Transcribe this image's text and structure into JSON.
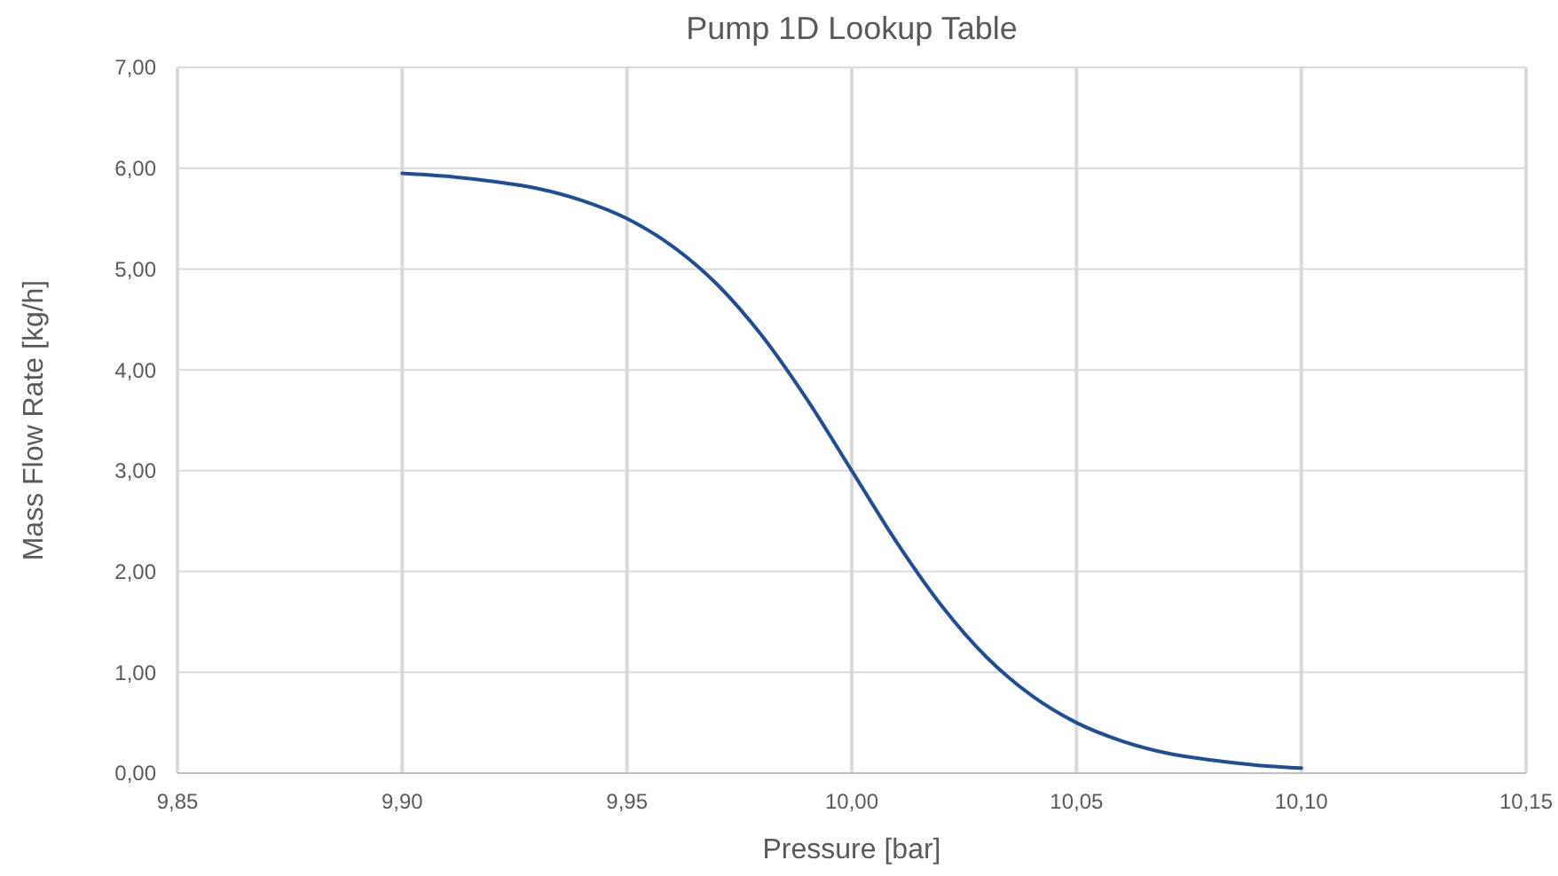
{
  "chart_data": {
    "type": "line",
    "title": "Pump 1D Lookup Table",
    "xlabel": "Pressure [bar]",
    "ylabel": "Mass Flow Rate [kg/h]",
    "x": [
      9.9,
      9.91,
      9.92,
      9.93,
      9.94,
      9.95,
      9.96,
      9.97,
      9.98,
      9.99,
      10,
      10.01,
      10.02,
      10.03,
      10.04,
      10.05,
      10.06,
      10.07,
      10.08,
      10.09,
      10.1
    ],
    "series": [
      {
        "color": "#1f4e96",
        "values": [
          5.95,
          5.92,
          5.87,
          5.8,
          5.68,
          5.5,
          5.23,
          4.85,
          4.34,
          3.71,
          3,
          2.29,
          1.66,
          1.15,
          0.77,
          0.5,
          0.32,
          0.2,
          0.13,
          0.08,
          0.05
        ]
      }
    ],
    "xlim": [
      9.85,
      10.15
    ],
    "xticks": [
      {
        "value": 9.85,
        "label": "9,85"
      },
      {
        "value": 9.9,
        "label": "9,90"
      },
      {
        "value": 9.95,
        "label": "9,95"
      },
      {
        "value": 10,
        "label": "10,00"
      },
      {
        "value": 10.05,
        "label": "10,05"
      },
      {
        "value": 10.1,
        "label": "10,10"
      },
      {
        "value": 10.15,
        "label": "10,15"
      }
    ],
    "ylim": [
      0,
      7
    ],
    "yticks": [
      {
        "value": 0,
        "label": "0,00"
      },
      {
        "value": 1,
        "label": "1,00"
      },
      {
        "value": 2,
        "label": "2,00"
      },
      {
        "value": 3,
        "label": "3,00"
      },
      {
        "value": 4,
        "label": "4,00"
      },
      {
        "value": 5,
        "label": "5,00"
      },
      {
        "value": 6,
        "label": "6,00"
      },
      {
        "value": 7,
        "label": "7,00"
      }
    ],
    "grid": true,
    "marker": "none",
    "line_style": "solid"
  }
}
